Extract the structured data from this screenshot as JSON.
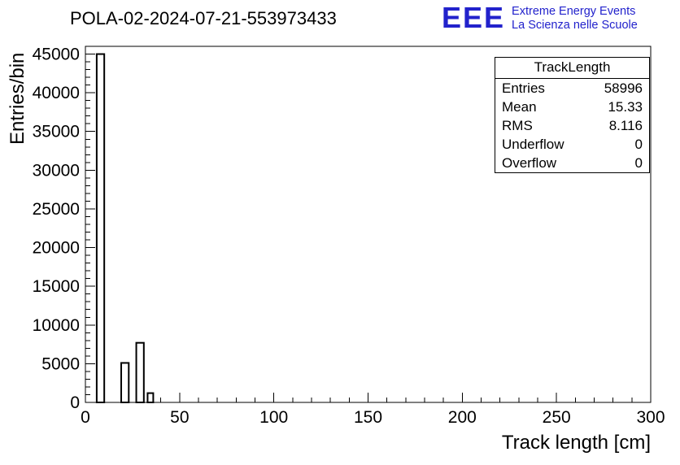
{
  "page": {
    "title": "POLA-02-2024-07-21-553973433"
  },
  "logo": {
    "text": "EEE",
    "line1": "Extreme Energy Events",
    "line2": "La Scienza nelle Scuole",
    "color": "#2222cc"
  },
  "stats": {
    "title": "TrackLength",
    "rows": [
      {
        "label": "Entries",
        "value": "58996"
      },
      {
        "label": "Mean",
        "value": "15.33"
      },
      {
        "label": "RMS",
        "value": "8.116"
      },
      {
        "label": "Underflow",
        "value": "0"
      },
      {
        "label": "Overflow",
        "value": "0"
      }
    ]
  },
  "chart_data": {
    "type": "bar",
    "title": "POLA-02-2024-07-21-553973433",
    "xlabel": "Track length [cm]",
    "ylabel": "Entries/bin",
    "xlim": [
      0,
      300
    ],
    "ylim": [
      0,
      46000
    ],
    "x_major_ticks": [
      0,
      50,
      100,
      150,
      200,
      250,
      300
    ],
    "x_minor_step": 10,
    "y_major_ticks": [
      0,
      5000,
      10000,
      15000,
      20000,
      25000,
      30000,
      35000,
      40000,
      45000
    ],
    "y_minor_step": 1000,
    "grid": false,
    "legend_position": "none",
    "bar_fill": "#ffffff",
    "bar_stroke": "#000000",
    "bars": [
      {
        "x_start": 6,
        "x_end": 10,
        "value": 45000
      },
      {
        "x_start": 19,
        "x_end": 23,
        "value": 5100
      },
      {
        "x_start": 27,
        "x_end": 31,
        "value": 7700
      },
      {
        "x_start": 33,
        "x_end": 36,
        "value": 1200
      }
    ]
  }
}
